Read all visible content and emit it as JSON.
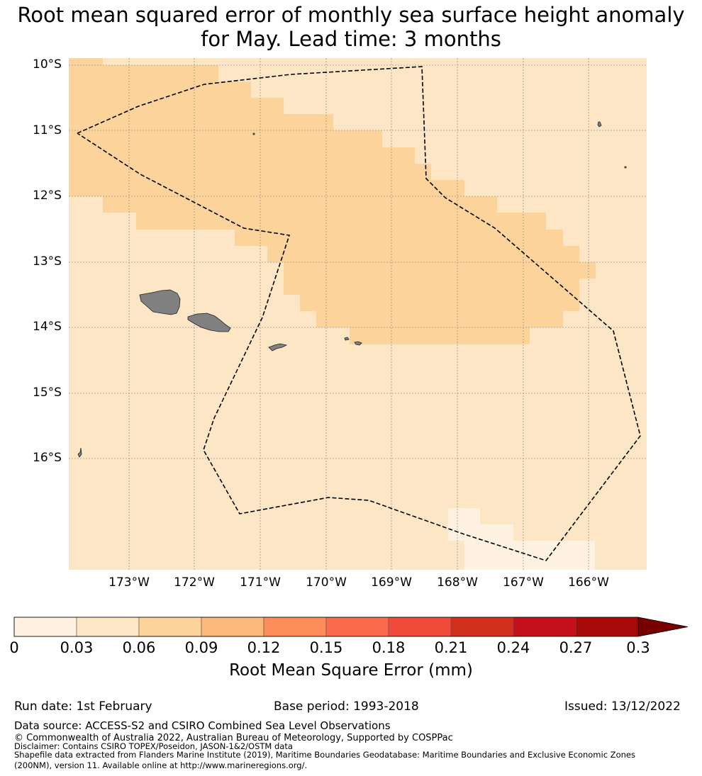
{
  "title": {
    "line1": "Root mean squared error of monthly sea surface height anomaly",
    "line2": "for May. Lead time: 3 months"
  },
  "map": {
    "lat_labels": [
      "10°S",
      "11°S",
      "12°S",
      "13°S",
      "14°S",
      "15°S",
      "16°S"
    ],
    "lon_labels": [
      "173°W",
      "172°W",
      "171°W",
      "170°W",
      "169°W",
      "168°W",
      "167°W",
      "166°W"
    ],
    "colors": {
      "lightest": "#fff2e0",
      "light": "#fde6c6",
      "medium": "#fcd49b",
      "land": "#808080",
      "boundary": "#000000"
    }
  },
  "colorbar": {
    "ticks": [
      "0",
      "0.03",
      "0.06",
      "0.09",
      "0.12",
      "0.15",
      "0.18",
      "0.21",
      "0.24",
      "0.27",
      "0.3"
    ],
    "colors": [
      "#fff2e0",
      "#fde6c6",
      "#fcd49b",
      "#fdb87b",
      "#fc8d59",
      "#fb6a4a",
      "#f04a3a",
      "#d32f1f",
      "#c4101a",
      "#a80a0a",
      "#7a0000"
    ],
    "label": "Root Mean Square Error (mm)"
  },
  "footer": {
    "run_date": "Run date: 1st February",
    "base_period": "Base period: 1993-2018",
    "issued": "Issued: 13/12/2022",
    "data_source": "Data source: ACCESS-S2 and CSIRO Combined Sea Level Observations",
    "copyright": "© Commonwealth of Australia 2022, Australian Bureau of Meteorology, Supported by COSPPac",
    "disclaimer": "Disclaimer: Contains CSIRO TOPEX/Poseidon, JASON-1&2/OSTM data",
    "shapefile_line1": "Shapefile data extracted from Flanders Marine Institute (2019), Maritime Boundaries Geodatabase: Maritime Boundaries and Exclusive Economic Zones",
    "shapefile_line2": "(200NM), version 11. Available online at http://www.marineregions.org/."
  }
}
